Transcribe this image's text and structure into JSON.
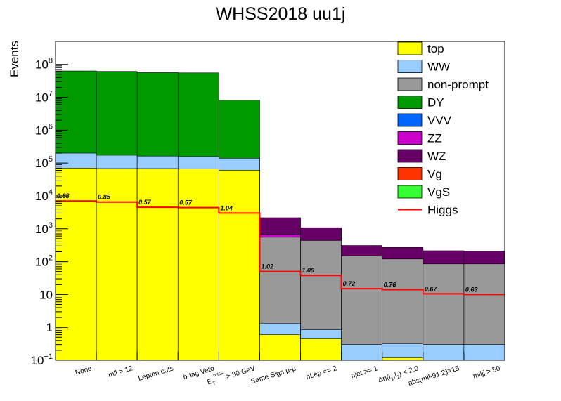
{
  "chart_data": {
    "type": "bar",
    "stacked": true,
    "title": "WHSS2018 uu1j",
    "xlabel": "",
    "ylabel": "Events",
    "yscale": "log",
    "ylim": [
      0.1,
      500000000
    ],
    "legend_position": "top-right",
    "categories": [
      "None",
      "mll > 12",
      "Lepton cuts",
      "b-tag Veto",
      "E_T^miss > 30 GeV",
      "Same Sign μ-μ",
      "nLep == 2",
      "njet >= 1",
      "Δη(l_1,l_2) < 2.0",
      "abs(mll-91.2)>15",
      "mlljj > 50"
    ],
    "y_tick_labels": [
      {
        "base": "10",
        "exp": "−1"
      },
      {
        "base": "1",
        "exp": ""
      },
      {
        "base": "10",
        "exp": ""
      },
      {
        "base": "10",
        "exp": "2"
      },
      {
        "base": "10",
        "exp": "3"
      },
      {
        "base": "10",
        "exp": "4"
      },
      {
        "base": "10",
        "exp": "5"
      },
      {
        "base": "10",
        "exp": "6"
      },
      {
        "base": "10",
        "exp": "7"
      },
      {
        "base": "10",
        "exp": "8"
      }
    ],
    "series": [
      {
        "name": "top",
        "color": "#ffff00",
        "values": [
          70000,
          68000,
          68000,
          67000,
          60000,
          0.6,
          0.45,
          0.1,
          0.12,
          0.1,
          0.1
        ]
      },
      {
        "name": "WW",
        "color": "#99ccff",
        "values": [
          130000,
          105000,
          95000,
          90000,
          80000,
          0.7,
          0.4,
          0.2,
          0.2,
          0.2,
          0.2
        ]
      },
      {
        "name": "non-prompt",
        "color": "#999999",
        "values": [
          0,
          0,
          0,
          0,
          0,
          550,
          440,
          150,
          120,
          85,
          85
        ]
      },
      {
        "name": "DY",
        "color": "#009900",
        "values": [
          63000000,
          61000000,
          56000000,
          55000000,
          8000000,
          0,
          0,
          0,
          0,
          0,
          0
        ]
      },
      {
        "name": "VVV",
        "color": "#0066ff",
        "values": [
          0,
          0,
          0,
          0,
          0,
          0,
          0,
          0,
          0,
          0,
          0
        ]
      },
      {
        "name": "ZZ",
        "color": "#cc00cc",
        "values": [
          0,
          0,
          0,
          0,
          0,
          120,
          0,
          0,
          0,
          0,
          0
        ]
      },
      {
        "name": "WZ",
        "color": "#660066",
        "values": [
          0,
          0,
          0,
          0,
          0,
          1500,
          640,
          160,
          150,
          130,
          125
        ]
      },
      {
        "name": "Vg",
        "color": "#ff3300",
        "values": [
          0,
          0,
          0,
          0,
          0,
          0,
          0,
          0,
          0,
          0,
          0
        ]
      },
      {
        "name": "VgS",
        "color": "#33ff33",
        "values": [
          0,
          0,
          0,
          0,
          0,
          0,
          0,
          0,
          0,
          0,
          0
        ]
      }
    ],
    "higgs": {
      "name": "Higgs",
      "color": "#ff0000",
      "values": [
        7000,
        6500,
        4500,
        4400,
        3000,
        50,
        38,
        15,
        14,
        10.5,
        10
      ],
      "ratio_labels": [
        "0.88",
        "0.85",
        "0.57",
        "0.57",
        "1.04",
        "1.02",
        "1.09",
        "0.72",
        "0.76",
        "0.67",
        "0.63"
      ]
    }
  }
}
